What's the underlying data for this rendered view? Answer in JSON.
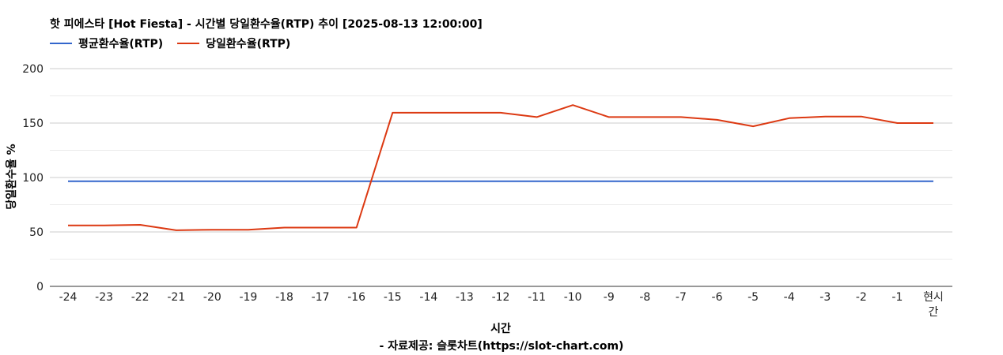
{
  "chart_data": {
    "type": "line",
    "title": "핫 피에스타 [Hot Fiesta] - 시간별 당일환수율(RTP) 추이 [2025-08-13 12:00:00]",
    "xlabel": "시간",
    "ylabel": "당일환수율 %",
    "source": "- 자료제공: 슬롯차트(https://slot-chart.com)",
    "categories": [
      "-24",
      "-23",
      "-22",
      "-21",
      "-20",
      "-19",
      "-18",
      "-17",
      "-16",
      "-15",
      "-14",
      "-13",
      "-12",
      "-11",
      "-10",
      "-9",
      "-8",
      "-7",
      "-6",
      "-5",
      "-4",
      "-3",
      "-2",
      "-1",
      "현시간"
    ],
    "y_ticks": [
      0,
      50,
      100,
      150,
      200
    ],
    "ylim": [
      0,
      200
    ],
    "grid": true,
    "legend_position": "top-left",
    "series": [
      {
        "name": "평균환수율(RTP)",
        "color": "#3366cc",
        "values": [
          96.5,
          96.5,
          96.5,
          96.5,
          96.5,
          96.5,
          96.5,
          96.5,
          96.5,
          96.5,
          96.5,
          96.5,
          96.5,
          96.5,
          96.5,
          96.5,
          96.5,
          96.5,
          96.5,
          96.5,
          96.5,
          96.5,
          96.5,
          96.5,
          96.5
        ]
      },
      {
        "name": "당일환수율(RTP)",
        "color": "#dc3912",
        "values": [
          56,
          56,
          56.5,
          51.5,
          52,
          52,
          54,
          54,
          54,
          159.5,
          159.5,
          159.5,
          159.5,
          155.5,
          166.5,
          155.5,
          155.5,
          155.5,
          153,
          147,
          154.5,
          156,
          156,
          150,
          150
        ]
      }
    ]
  }
}
